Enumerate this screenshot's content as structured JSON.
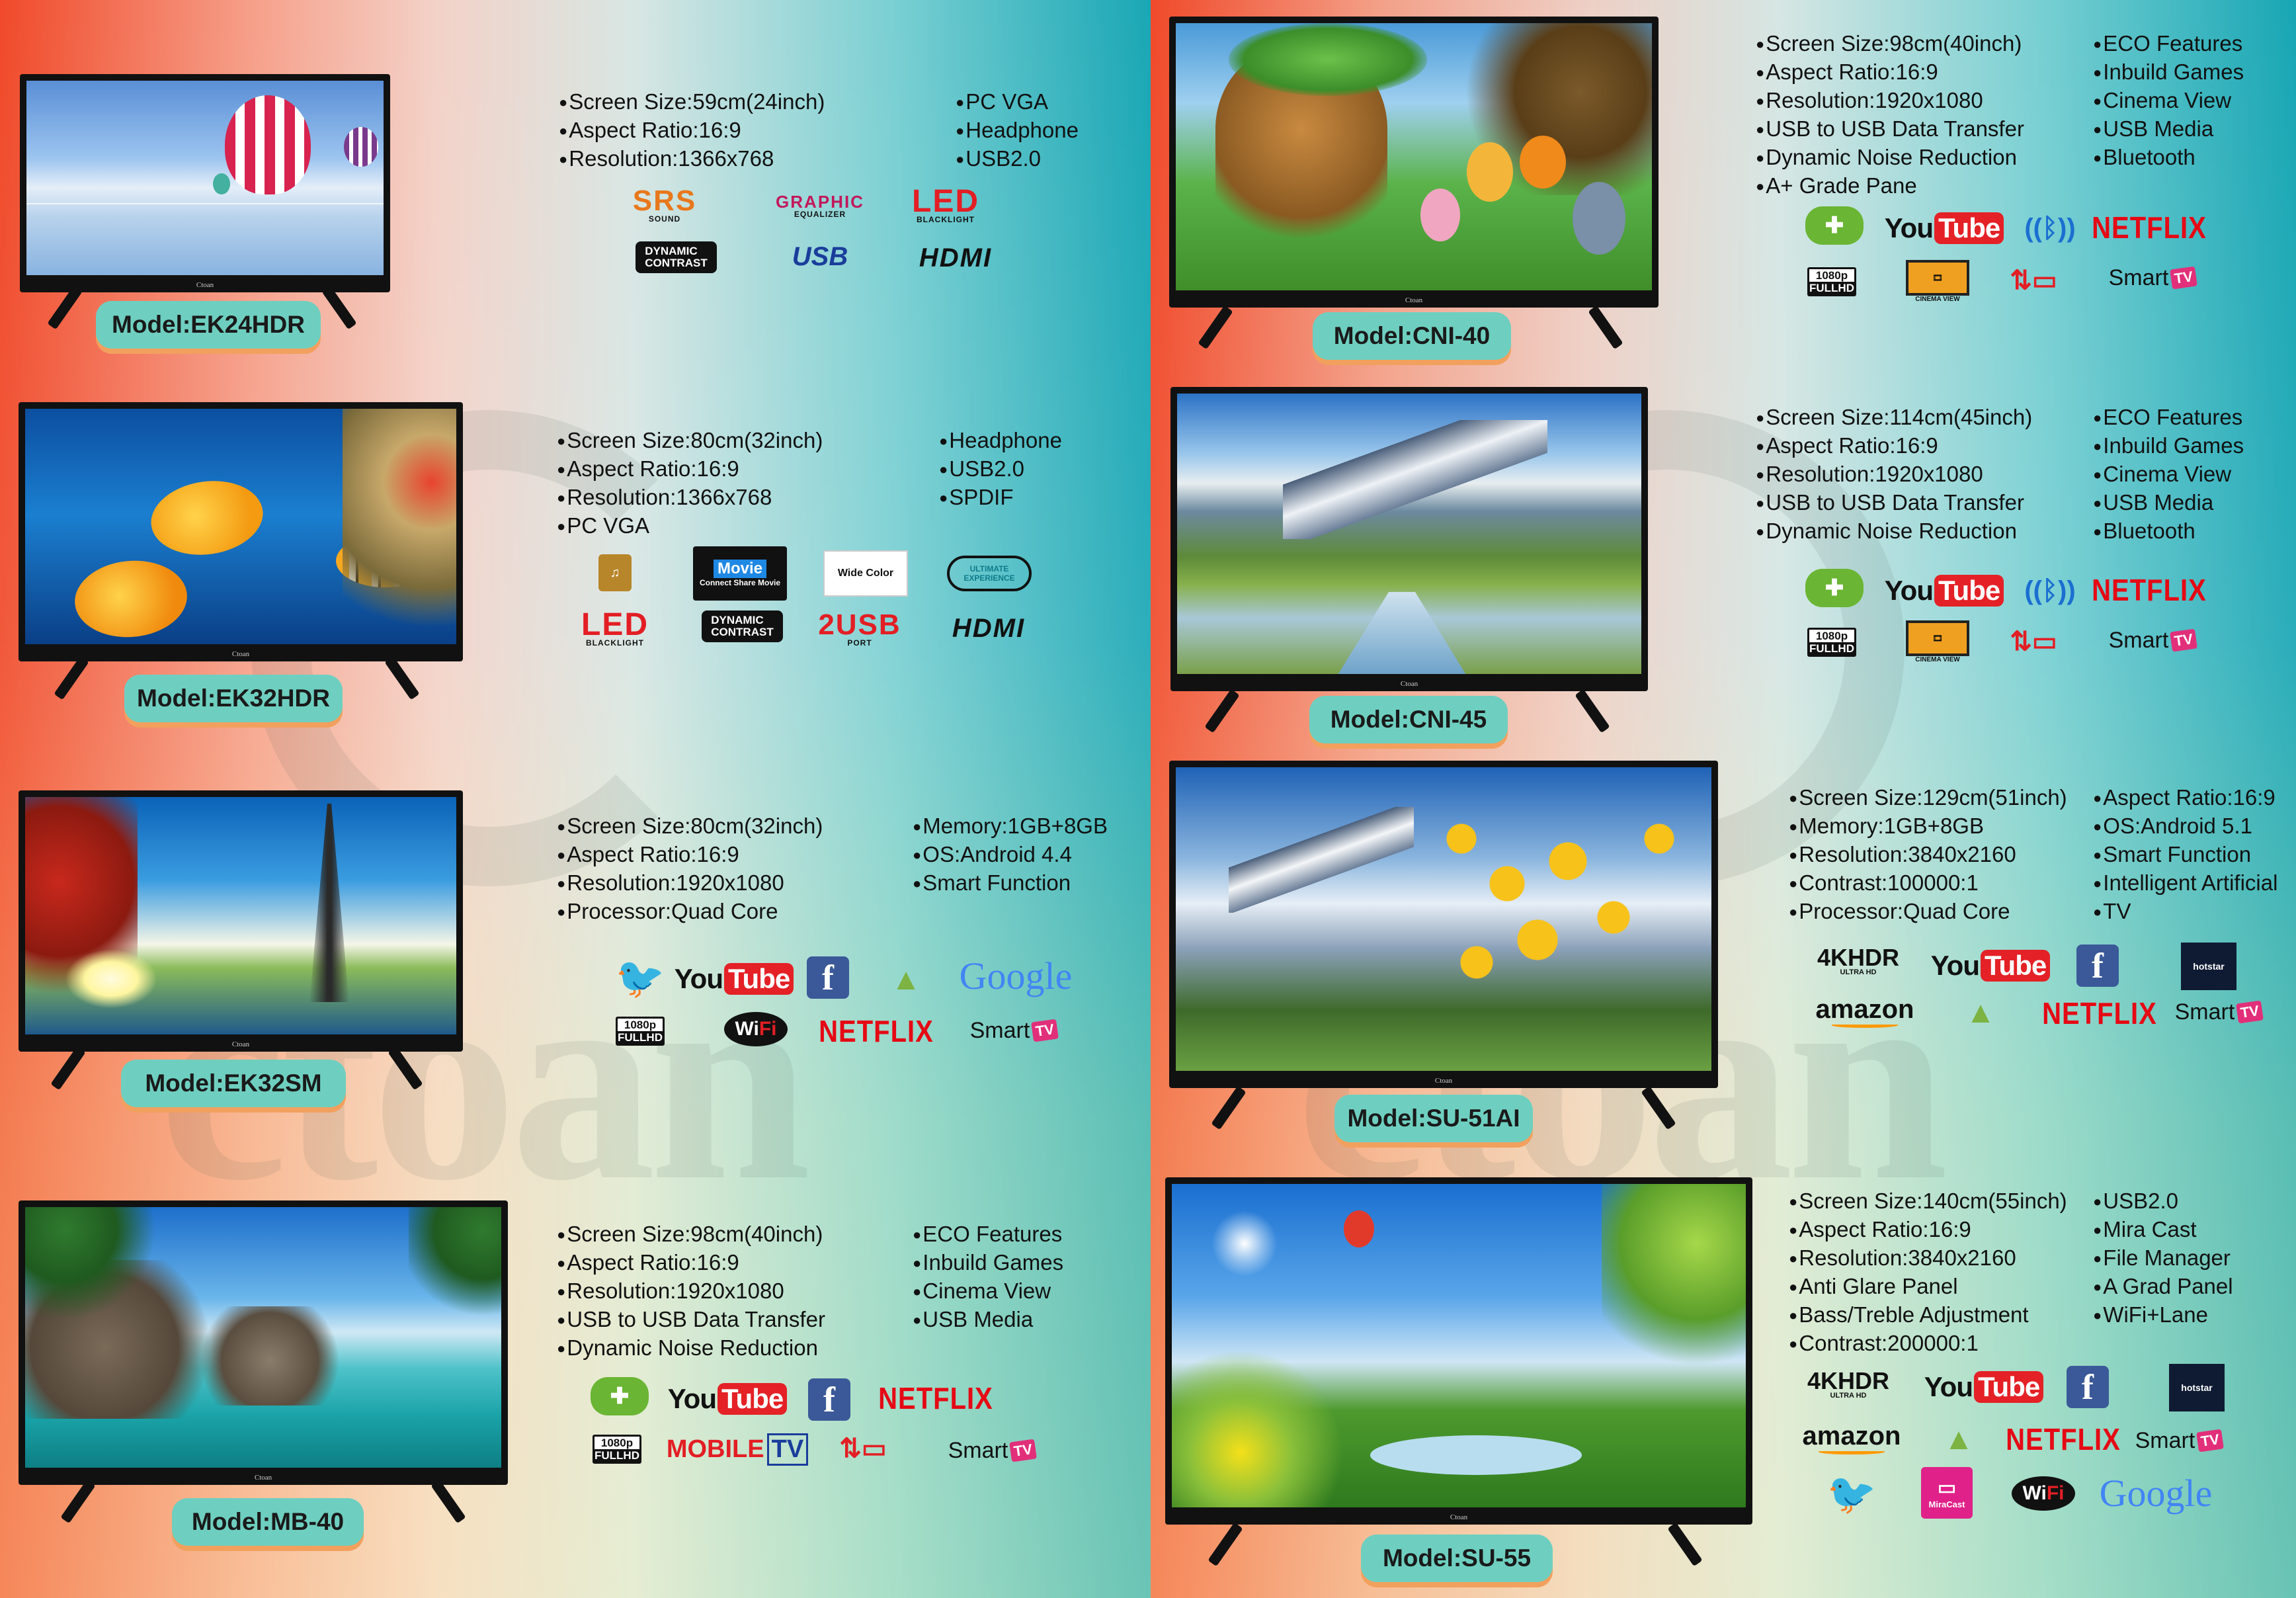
{
  "brand": "Ctoan",
  "watermark": "ctoan",
  "left_page": [
    {
      "model": "Model:EK24HDR",
      "specs_col1": [
        "Screen Size:59cm(24inch)",
        "Aspect Ratio:16:9",
        "Resolution:1366x768"
      ],
      "specs_col2": [
        "PC VGA",
        "Headphone",
        "USB2.0"
      ],
      "icons": {
        "srs": "SRS",
        "srs_sub": "SOUND",
        "graphic_eq": "GRAPHIC",
        "graphic_eq_sub": "EQUALIZER",
        "led": "LED",
        "led_sub": "BLACKLIGHT",
        "dynamic": "DYNAMIC",
        "dynamic_sub": "CONTRAST",
        "usb": "USB",
        "hdmi": "HDMI"
      }
    },
    {
      "model": "Model:EK32HDR",
      "specs_col1": [
        "Screen Size:80cm(32inch)",
        "Aspect Ratio:16:9",
        "Resolution:1366x768",
        "PC VGA"
      ],
      "specs_col2": [
        "Headphone",
        "USB2.0",
        "SPDIF"
      ],
      "icons": {
        "movie": "Movie",
        "movie_sub": "Connect Share Movie",
        "wide_color": "Wide Color",
        "ultimate": "ULTIMATE",
        "ultimate_sub": "EXPERIENCE",
        "led": "LED",
        "led_sub": "BLACKLIGHT",
        "dynamic": "DYNAMIC",
        "dynamic_sub": "CONTRAST",
        "usb2port": "2USB",
        "usb2port_sub": "PORT",
        "hdmi": "HDMI"
      }
    },
    {
      "model": "Model:EK32SM",
      "specs_col1": [
        "Screen Size:80cm(32inch)",
        "Aspect Ratio:16:9",
        "Resolution:1920x1080",
        "Processor:Quad Core"
      ],
      "specs_col2": [
        "Memory:1GB+8GB",
        "OS:Android 4.4",
        "Smart Function"
      ],
      "icons": {
        "youtube_a": "You",
        "youtube_b": "Tube",
        "facebook": "f",
        "google": "Google",
        "fhd_a": "1080p",
        "fhd_b": "FULLHD",
        "wifi_a": "Wi",
        "wifi_b": "Fi",
        "netflix": "NETFLIX",
        "smart": "Smart",
        "tv": "TV"
      }
    },
    {
      "model": "Model:MB-40",
      "specs_col1": [
        "Screen Size:98cm(40inch)",
        "Aspect Ratio:16:9",
        "Resolution:1920x1080",
        "USB to USB Data Transfer",
        "Dynamic Noise Reduction"
      ],
      "specs_col2": [
        "ECO Features",
        "Inbuild Games",
        "Cinema View",
        "USB Media"
      ],
      "icons": {
        "youtube_a": "You",
        "youtube_b": "Tube",
        "facebook": "f",
        "netflix": "NETFLIX",
        "fhd_a": "1080p",
        "fhd_b": "FULLHD",
        "mobile": "MOBILE",
        "mobile_tv": "TV",
        "smart": "Smart",
        "tv": "TV"
      }
    }
  ],
  "right_page": [
    {
      "model": "Model:CNI-40",
      "specs_col1": [
        "Screen Size:98cm(40inch)",
        "Aspect Ratio:16:9",
        "Resolution:1920x1080",
        "USB to USB Data Transfer",
        "Dynamic Noise Reduction",
        "A+ Grade Pane"
      ],
      "specs_col2": [
        "ECO Features",
        "Inbuild Games",
        "Cinema View",
        "USB Media",
        "Bluetooth"
      ],
      "icons": {
        "youtube_a": "You",
        "youtube_b": "Tube",
        "netflix": "NETFLIX",
        "fhd_a": "1080p",
        "fhd_b": "FULLHD",
        "cinema": "CINEMA VIEW",
        "smart": "Smart",
        "tv": "TV"
      }
    },
    {
      "model": "Model:CNI-45",
      "specs_col1": [
        "Screen Size:114cm(45inch)",
        "Aspect Ratio:16:9",
        "Resolution:1920x1080",
        "USB to USB Data Transfer",
        "Dynamic Noise Reduction"
      ],
      "specs_col2": [
        "ECO Features",
        "Inbuild Games",
        "Cinema View",
        "USB Media",
        "Bluetooth"
      ],
      "icons": {
        "youtube_a": "You",
        "youtube_b": "Tube",
        "netflix": "NETFLIX",
        "fhd_a": "1080p",
        "fhd_b": "FULLHD",
        "cinema": "CINEMA VIEW",
        "smart": "Smart",
        "tv": "TV"
      }
    },
    {
      "model": "Model:SU-51AI",
      "specs_col1": [
        "Screen Size:129cm(51inch)",
        "Memory:1GB+8GB",
        "Resolution:3840x2160",
        "Contrast:100000:1",
        "Processor:Quad Core"
      ],
      "specs_col2": [
        "Aspect Ratio:16:9",
        "OS:Android 5.1",
        "Smart Function",
        "Intelligent Artificial",
        "TV"
      ],
      "icons": {
        "k4": "4KHDR",
        "k4_sub": "ULTRA HD",
        "youtube_a": "You",
        "youtube_b": "Tube",
        "facebook": "f",
        "hotstar": "hotstar",
        "amazon": "amazon",
        "netflix": "NETFLIX",
        "smart": "Smart",
        "tv": "TV"
      }
    },
    {
      "model": "Model:SU-55",
      "specs_col1": [
        "Screen Size:140cm(55inch)",
        "Aspect Ratio:16:9",
        "Resolution:3840x2160",
        "Anti Glare Panel",
        "Bass/Treble Adjustment",
        "Contrast:200000:1"
      ],
      "specs_col2": [
        "USB2.0",
        "Mira Cast",
        "File Manager",
        "A Grad Panel",
        "WiFi+Lane"
      ],
      "icons": {
        "k4": "4KHDR",
        "k4_sub": "ULTRA HD",
        "youtube_a": "You",
        "youtube_b": "Tube",
        "facebook": "f",
        "hotstar": "hotstar",
        "amazon": "amazon",
        "netflix": "NETFLIX",
        "smart": "Smart",
        "tv": "TV",
        "miracast": "MiraCast",
        "wifi_a": "Wi",
        "wifi_b": "Fi",
        "google": "Google"
      }
    }
  ]
}
